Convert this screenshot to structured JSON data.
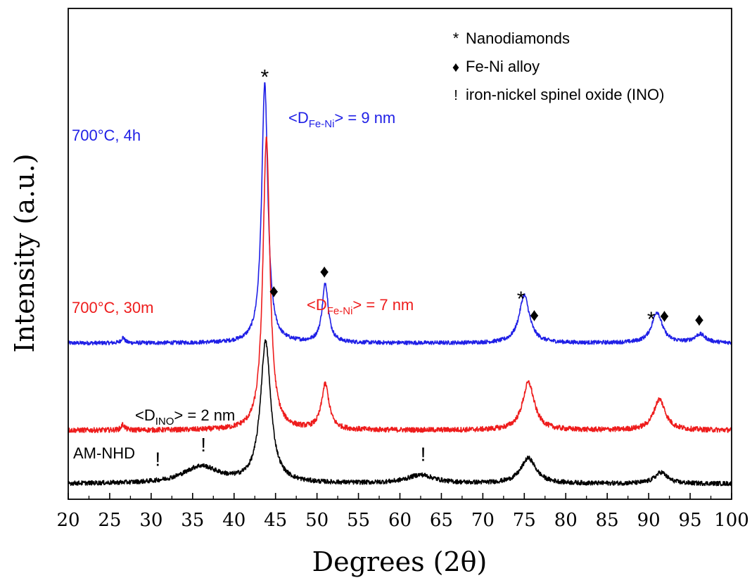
{
  "chart_data": {
    "type": "line",
    "xlabel": "Degrees (2θ)",
    "ylabel": "Intensity (a.u.)",
    "xlim": [
      20,
      100
    ],
    "x_ticks": [
      "20",
      "25",
      "30",
      "35",
      "40",
      "45",
      "50",
      "55",
      "60",
      "65",
      "70",
      "75",
      "80",
      "85",
      "90",
      "95",
      "100"
    ],
    "y_ticks_shown": false,
    "grid": false,
    "legend_position": "top-right",
    "legend": [
      {
        "symbol": "*",
        "symbol_name": "asterisk",
        "label": "Nanodiamonds"
      },
      {
        "symbol": "♦",
        "symbol_name": "diamond",
        "label": "Fe-Ni alloy"
      },
      {
        "symbol": "!",
        "symbol_name": "exclamation",
        "label": "iron-nickel spinel oxide (INO)"
      }
    ],
    "series": [
      {
        "name": "700°C, 4h",
        "color": "#1f1fe6",
        "baseline": 0.5,
        "noise": 0.007,
        "peaks": [
          {
            "x": 26.6,
            "h": 0.02,
            "w": 0.25
          },
          {
            "x": 43.7,
            "h": 0.92,
            "w": 0.45
          },
          {
            "x": 51.0,
            "h": 0.21,
            "w": 0.45
          },
          {
            "x": 75.0,
            "h": 0.17,
            "w": 0.75
          },
          {
            "x": 91.0,
            "h": 0.11,
            "w": 0.75
          },
          {
            "x": 96.2,
            "h": 0.03,
            "w": 0.8
          }
        ],
        "size_label": {
          "prefix": "<D",
          "sub": "Fe-Ni",
          "suffix": "> = 9 nm"
        }
      },
      {
        "name": "700°C, 30m",
        "color": "#ee1c1c",
        "baseline": 0.19,
        "noise": 0.009,
        "peaks": [
          {
            "x": 26.6,
            "h": 0.02,
            "w": 0.25
          },
          {
            "x": 43.9,
            "h": 1.04,
            "w": 0.5
          },
          {
            "x": 51.0,
            "h": 0.16,
            "w": 0.55
          },
          {
            "x": 75.5,
            "h": 0.17,
            "w": 0.85
          },
          {
            "x": 91.3,
            "h": 0.11,
            "w": 0.85
          }
        ],
        "size_label": {
          "prefix": "<D",
          "sub": "Fe-Ni",
          "suffix": "> = 7 nm"
        }
      },
      {
        "name": "AM-NHD",
        "color": "#000000",
        "baseline": 0.0,
        "noise": 0.008,
        "peaks": [
          {
            "x": 36.0,
            "h": 0.06,
            "w": 2.6
          },
          {
            "x": 43.8,
            "h": 0.5,
            "w": 0.75
          },
          {
            "x": 62.5,
            "h": 0.03,
            "w": 2.0
          },
          {
            "x": 75.5,
            "h": 0.09,
            "w": 1.1
          },
          {
            "x": 91.5,
            "h": 0.04,
            "w": 0.9
          }
        ],
        "size_label": {
          "prefix": "<D",
          "sub": "INO",
          "suffix": "> = 2 nm"
        }
      }
    ],
    "annotations": [
      {
        "series": "700°C, 4h",
        "x": 43.7,
        "text": "*"
      },
      {
        "series": "700°C, 4h",
        "x": 44.8,
        "text": "♦"
      },
      {
        "series": "700°C, 4h",
        "x": 50.9,
        "text": "♦"
      },
      {
        "series": "700°C, 4h",
        "x": 74.6,
        "text": "*"
      },
      {
        "series": "700°C, 4h",
        "x": 76.2,
        "text": "♦"
      },
      {
        "series": "700°C, 4h",
        "x": 90.3,
        "text": "*"
      },
      {
        "series": "700°C, 4h",
        "x": 91.9,
        "text": "♦"
      },
      {
        "series": "700°C, 4h",
        "x": 96.1,
        "text": "♦"
      },
      {
        "series": "AM-NHD",
        "x": 30.8,
        "text": "!"
      },
      {
        "series": "AM-NHD",
        "x": 36.3,
        "text": "!"
      },
      {
        "series": "AM-NHD",
        "x": 62.8,
        "text": "!"
      }
    ]
  }
}
